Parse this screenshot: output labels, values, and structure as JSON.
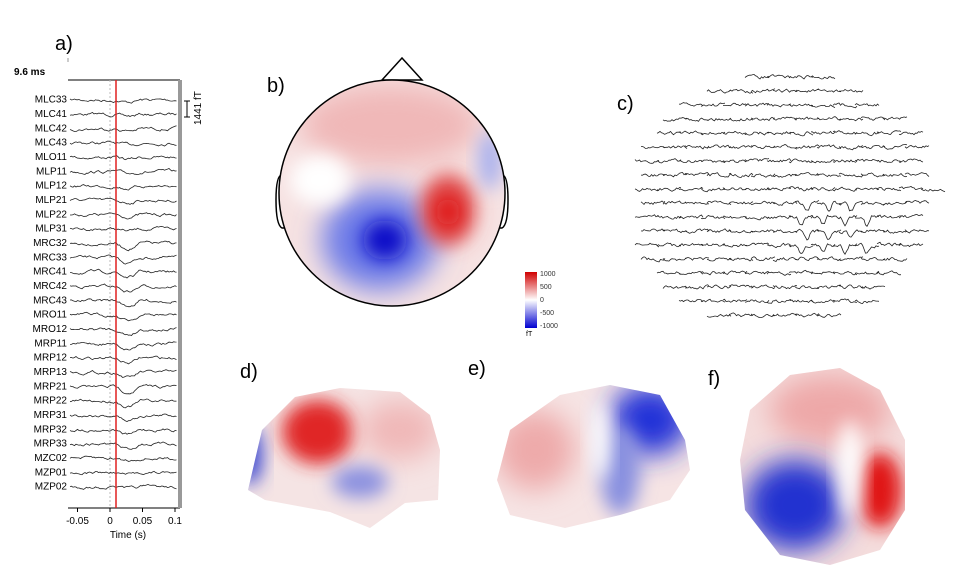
{
  "panels": {
    "a": {
      "label": "a)",
      "latency": "9.6 ms",
      "channels": [
        "MLC33",
        "MLC41",
        "MLC42",
        "MLC43",
        "MLO11",
        "MLP11",
        "MLP12",
        "MLP21",
        "MLP22",
        "MLP31",
        "MRC32",
        "MRC33",
        "MRC41",
        "MRC42",
        "MRC43",
        "MRO11",
        "MRO12",
        "MRP11",
        "MRP12",
        "MRP13",
        "MRP21",
        "MRP22",
        "MRP31",
        "MRP32",
        "MRP33",
        "MZC02",
        "MZP01",
        "MZP02"
      ],
      "xticks": [
        -0.05,
        0,
        0.05,
        0.1
      ],
      "xlabel": "Time (s)",
      "scale": "1441 fT"
    },
    "b": {
      "label": "b)",
      "colorbar": {
        "ticks": [
          1000,
          500,
          0,
          -500,
          -1000
        ],
        "unit": "fT"
      }
    },
    "c": {
      "label": "c)"
    },
    "d": {
      "label": "d)"
    },
    "e": {
      "label": "e)"
    },
    "f": {
      "label": "f)"
    }
  }
}
